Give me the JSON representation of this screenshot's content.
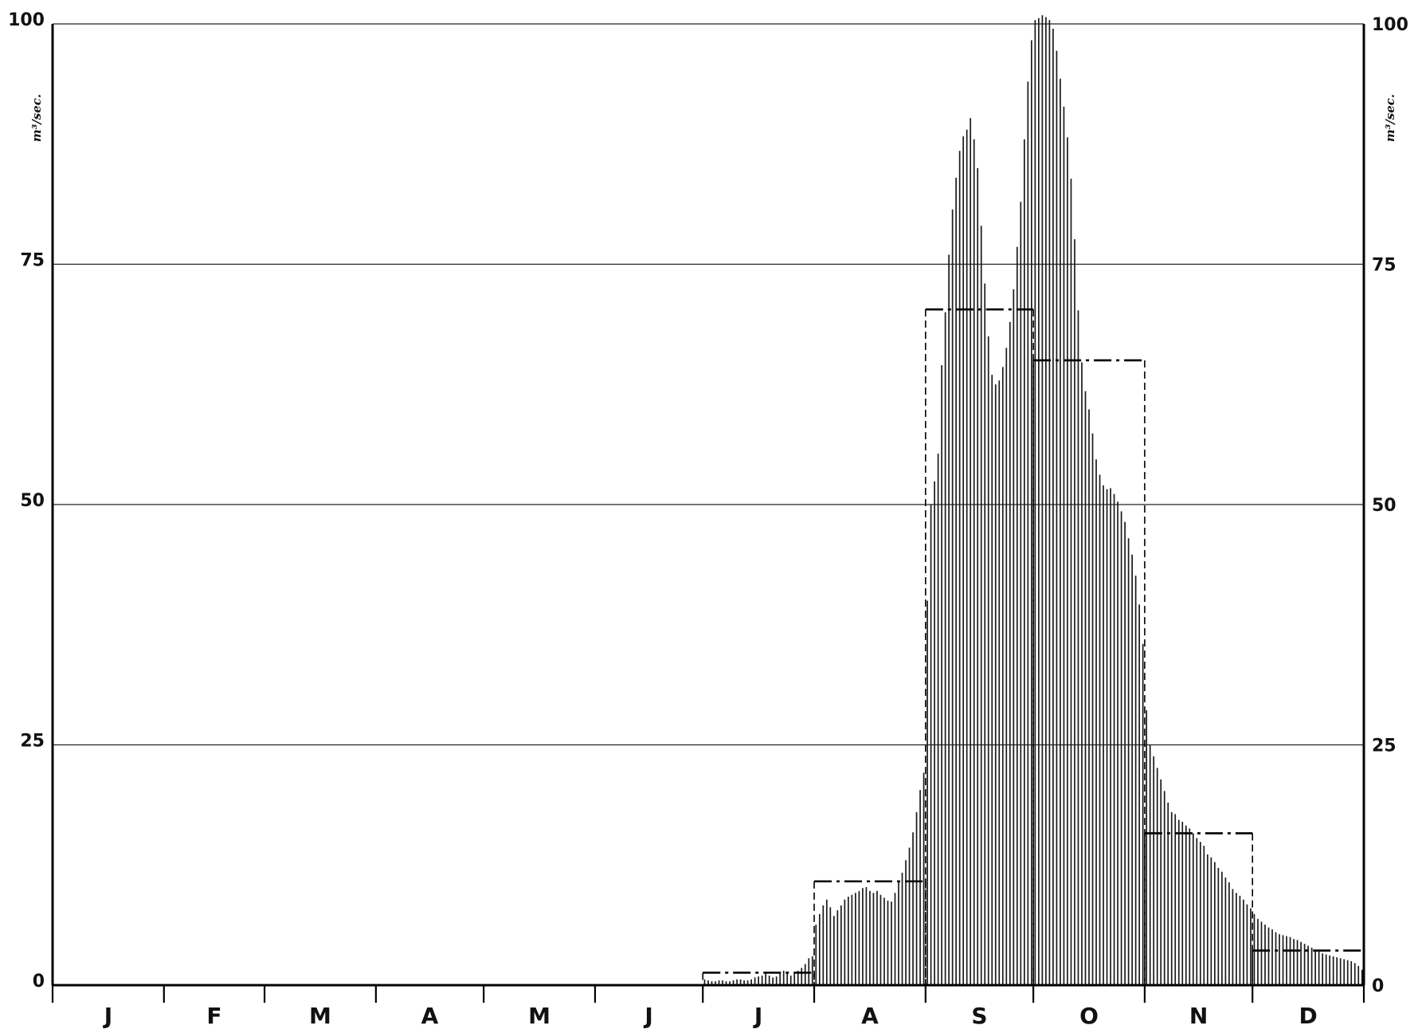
{
  "chart_data": {
    "type": "bar",
    "y_unit_label": "m³/sec.",
    "ylim": [
      0,
      100
    ],
    "y_ticks": [
      {
        "value": 0,
        "label": "0"
      },
      {
        "value": 25,
        "label": "25"
      },
      {
        "value": 50,
        "label": "50"
      },
      {
        "value": 75,
        "label": "75"
      },
      {
        "value": 100,
        "label": "100"
      }
    ],
    "grid": "horizontal at 25, 50, 75, 100",
    "months": [
      "J",
      "F",
      "M",
      "A",
      "M",
      "J",
      "J",
      "A",
      "S",
      "O",
      "N",
      "D"
    ],
    "series": [
      {
        "style": "daily-bars",
        "values": [
          0,
          0,
          0,
          0,
          0,
          0,
          0,
          0,
          0,
          0,
          0,
          0,
          0,
          0,
          0,
          0,
          0,
          0,
          0,
          0,
          0,
          0,
          0,
          0,
          0,
          0,
          0,
          0,
          0,
          0,
          0,
          0,
          0,
          0,
          0,
          0,
          0,
          0,
          0,
          0,
          0,
          0,
          0,
          0,
          0,
          0,
          0,
          0,
          0,
          0,
          0,
          0,
          0,
          0,
          0,
          0,
          0,
          0,
          0,
          0,
          0,
          0,
          0,
          0,
          0,
          0,
          0,
          0,
          0,
          0,
          0,
          0,
          0,
          0,
          0,
          0,
          0,
          0,
          0,
          0,
          0,
          0,
          0,
          0,
          0,
          0,
          0,
          0,
          0,
          0,
          0,
          0,
          0,
          0,
          0,
          0,
          0,
          0,
          0,
          0,
          0,
          0,
          0,
          0,
          0,
          0,
          0,
          0,
          0,
          0,
          0,
          0,
          0,
          0,
          0,
          0,
          0,
          0,
          0,
          0,
          0,
          0,
          0,
          0,
          0,
          0,
          0,
          0,
          0,
          0,
          0,
          0,
          0,
          0,
          0,
          0,
          0,
          0,
          0,
          0,
          0,
          0,
          0,
          0,
          0,
          0,
          0,
          0,
          0,
          0,
          0,
          0,
          0,
          0,
          0,
          0,
          0,
          0,
          0,
          0,
          0,
          0,
          0,
          0,
          0,
          0,
          0,
          0,
          0,
          0,
          0,
          0,
          0,
          0,
          0,
          0,
          0,
          0,
          0,
          0,
          0,
          0.6,
          0.5,
          0.4,
          0.4,
          0.5,
          0.5,
          0.4,
          0.4,
          0.5,
          0.6,
          0.6,
          0.5,
          0.5,
          0.6,
          0.8,
          0.9,
          1.0,
          1.2,
          1.0,
          0.8,
          0.9,
          1.2,
          1.5,
          1.3,
          1.0,
          1.2,
          1.5,
          1.8,
          2.2,
          2.8,
          3.0,
          6.3,
          7.4,
          8.3,
          8.9,
          8.1,
          7.2,
          7.8,
          8.3,
          8.9,
          9.2,
          9.4,
          9.6,
          9.8,
          10.1,
          10.2,
          9.8,
          9.6,
          9.8,
          9.4,
          9.1,
          8.8,
          8.7,
          9.6,
          10.7,
          11.7,
          13.0,
          14.3,
          15.9,
          18.0,
          20.3,
          22.1,
          40.0,
          50.0,
          52.4,
          55.3,
          64.5,
          70.0,
          76.0,
          80.7,
          84.0,
          86.8,
          88.3,
          89.0,
          90.2,
          88.0,
          85.0,
          79.0,
          73.0,
          67.5,
          63.5,
          62.5,
          62.9,
          64.3,
          66.3,
          69.0,
          72.4,
          76.8,
          81.5,
          88.0,
          94.0,
          98.3,
          100.4,
          100.6,
          100.9,
          100.7,
          100.4,
          99.5,
          97.2,
          94.3,
          91.4,
          88.2,
          83.9,
          77.6,
          70.2,
          64.8,
          61.8,
          59.9,
          57.4,
          54.7,
          53.1,
          52.0,
          51.6,
          51.7,
          51.1,
          50.3,
          49.3,
          48.2,
          46.5,
          44.8,
          42.6,
          39.6,
          35.5,
          28.6,
          25.0,
          23.8,
          22.6,
          21.4,
          20.2,
          19.0,
          18.0,
          17.8,
          17.2,
          17.0,
          16.6,
          16.3,
          15.8,
          15.3,
          14.9,
          14.5,
          13.6,
          13.3,
          12.8,
          12.2,
          11.8,
          11.2,
          10.7,
          10.0,
          9.6,
          9.3,
          8.9,
          8.4,
          8.0,
          7.4,
          6.9,
          6.6,
          6.3,
          6.0,
          5.8,
          5.5,
          5.3,
          5.2,
          5.1,
          5.0,
          4.8,
          4.7,
          4.5,
          4.3,
          4.1,
          3.9,
          3.7,
          3.5,
          3.3,
          3.2,
          3.1,
          3.0,
          2.9,
          2.8,
          2.7,
          2.6,
          2.5,
          2.3,
          2.0,
          1.6
        ]
      },
      {
        "style": "monthly-mean-dash-dot",
        "values": [
          0,
          0,
          0,
          0,
          0,
          0,
          1.3,
          10.8,
          70.3,
          65.0,
          15.8,
          3.6
        ]
      }
    ]
  }
}
